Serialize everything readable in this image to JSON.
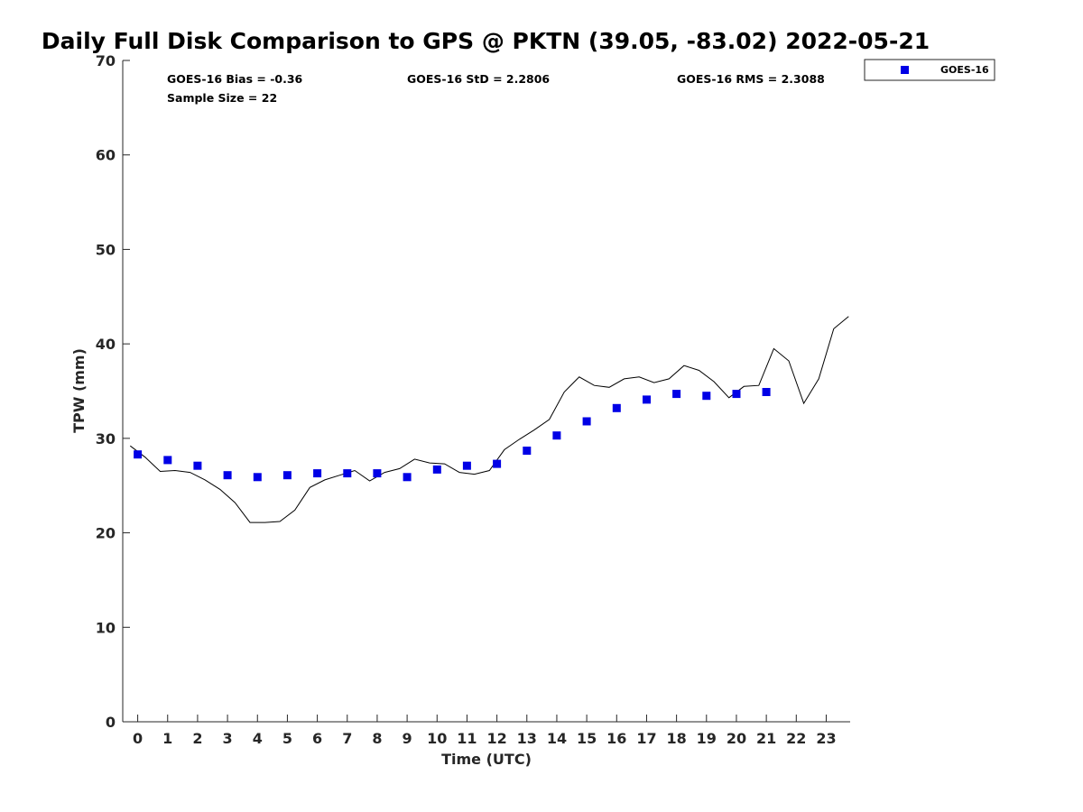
{
  "chart_data": {
    "type": "line",
    "title": "Daily Full Disk Comparison to GPS @ PKTN (39.05, -83.02) 2022-05-21",
    "xlabel": "Time (UTC)",
    "ylabel": "TPW (mm)",
    "xlim": [
      -0.5,
      23.8
    ],
    "ylim": [
      0,
      70
    ],
    "x_ticks": [
      0,
      1,
      2,
      3,
      4,
      5,
      6,
      7,
      8,
      9,
      10,
      11,
      12,
      13,
      14,
      15,
      16,
      17,
      18,
      19,
      20,
      21,
      22,
      23
    ],
    "y_ticks": [
      0,
      10,
      20,
      30,
      40,
      50,
      60,
      70
    ],
    "grid": false,
    "legend_position": "top-right",
    "series": [
      {
        "kind": "line",
        "color": "#000000",
        "x": [
          -0.25,
          0.25,
          0.75,
          1.25,
          1.75,
          2.25,
          2.75,
          3.25,
          3.75,
          4.25,
          4.75,
          5.25,
          5.75,
          6.25,
          6.75,
          7.25,
          7.75,
          8.25,
          8.75,
          9.25,
          9.75,
          10.25,
          10.75,
          11.25,
          11.75,
          12.25,
          12.75,
          13.25,
          13.75,
          14.25,
          14.75,
          15.25,
          15.75,
          16.25,
          16.75,
          17.25,
          17.75,
          18.25,
          18.75,
          19.25,
          19.75,
          20.25,
          20.75,
          21.25,
          21.75,
          22.25,
          22.75,
          23.25,
          23.75
        ],
        "y": [
          29.2,
          28.0,
          26.5,
          26.6,
          26.4,
          25.6,
          24.6,
          23.2,
          21.1,
          21.1,
          21.2,
          22.4,
          24.8,
          25.6,
          26.1,
          26.6,
          25.5,
          26.4,
          26.8,
          27.8,
          27.4,
          27.3,
          26.4,
          26.2,
          26.6,
          28.8,
          29.9,
          30.9,
          32.0,
          34.9,
          36.5,
          35.6,
          35.4,
          36.3,
          36.5,
          35.9,
          36.3,
          37.7,
          37.2,
          36.0,
          34.3,
          35.5,
          35.6,
          39.5,
          38.2,
          33.7,
          36.3,
          41.6,
          42.9
        ]
      },
      {
        "kind": "scatter",
        "name": "GOES-16",
        "color": "#0000e6",
        "x": [
          0,
          1,
          2,
          3,
          4,
          5,
          6,
          7,
          8,
          9,
          10,
          11,
          12,
          13,
          14,
          15,
          16,
          17,
          18,
          19,
          20,
          21
        ],
        "y": [
          28.3,
          27.7,
          27.1,
          26.1,
          25.9,
          26.1,
          26.3,
          26.3,
          26.3,
          25.9,
          26.7,
          27.1,
          27.3,
          28.7,
          30.3,
          31.8,
          33.2,
          34.1,
          34.7,
          34.5,
          34.7,
          34.9
        ]
      }
    ],
    "annotations": [
      "GOES-16 Bias = -0.36",
      "GOES-16 StD = 2.2806",
      "GOES-16 RMS = 2.3088",
      "Sample Size = 22"
    ],
    "legend_entries": [
      "GOES-16"
    ]
  }
}
